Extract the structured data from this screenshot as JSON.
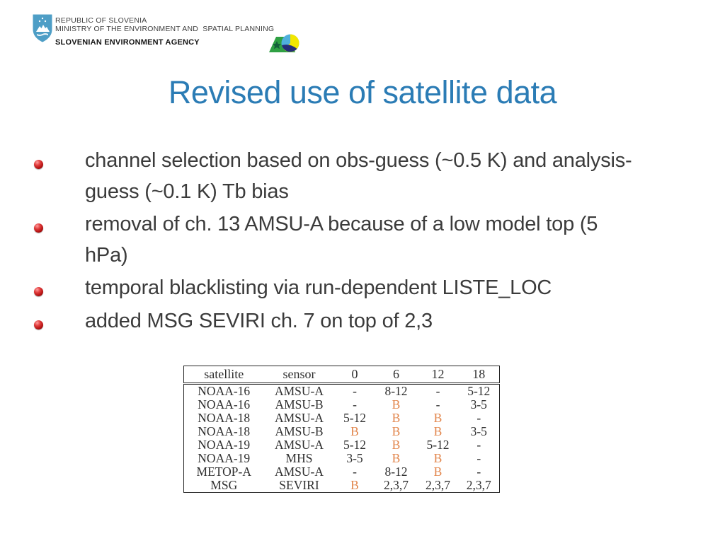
{
  "header": {
    "ministry_line1": "REPUBLIC OF SLOVENIA",
    "ministry_line2": "MINISTRY OF THE ENVIRONMENT AND  SPATIAL PLANNING",
    "agency": "SLOVENIAN ENVIRONMENT AGENCY",
    "coat_of_arms_icon": "slovenia-coat-of-arms",
    "agency_logo_icon": "arso-agency-logo"
  },
  "title": {
    "text": "Revised use of satellite data",
    "color": "#2B7CB5"
  },
  "bullets": {
    "marker_icon": "red-sphere-bullet",
    "items": [
      {
        "lines": [
          "channel selection based on obs-guess (~0.5 K) and analysis-",
          "guess (~0.1 K) Tb bias"
        ]
      },
      {
        "lines": [
          "removal of ch. 13 AMSU-A because of a low model top (5",
          "hPa)"
        ]
      },
      {
        "lines": [
          "temporal blacklisting via run-dependent LISTE_LOC"
        ]
      },
      {
        "lines": [
          "added MSG SEVIRI ch. 7 on top of 2,3"
        ]
      }
    ]
  },
  "table": {
    "columns": [
      "satellite",
      "sensor",
      "0",
      "6",
      "12",
      "18"
    ],
    "rows": [
      [
        "NOAA-16",
        "AMSU-A",
        "-",
        "8-12",
        "-",
        "5-12"
      ],
      [
        "NOAA-16",
        "AMSU-B",
        "-",
        "B",
        "-",
        "3-5"
      ],
      [
        "NOAA-18",
        "AMSU-A",
        "5-12",
        "B",
        "B",
        "-"
      ],
      [
        "NOAA-18",
        "AMSU-B",
        "B",
        "B",
        "B",
        "3-5"
      ],
      [
        "NOAA-19",
        "AMSU-A",
        "5-12",
        "B",
        "5-12",
        "-"
      ],
      [
        "NOAA-19",
        "MHS",
        "3-5",
        "B",
        "B",
        "-"
      ],
      [
        "METOP-A",
        "AMSU-A",
        "-",
        "8-12",
        "B",
        "-"
      ],
      [
        "MSG",
        "SEVIRI",
        "B",
        "2,3,7",
        "2,3,7",
        "2,3,7"
      ]
    ],
    "highlight_value": "B",
    "highlight_color": "#E2854B",
    "text_color": "#2F2F2F"
  }
}
